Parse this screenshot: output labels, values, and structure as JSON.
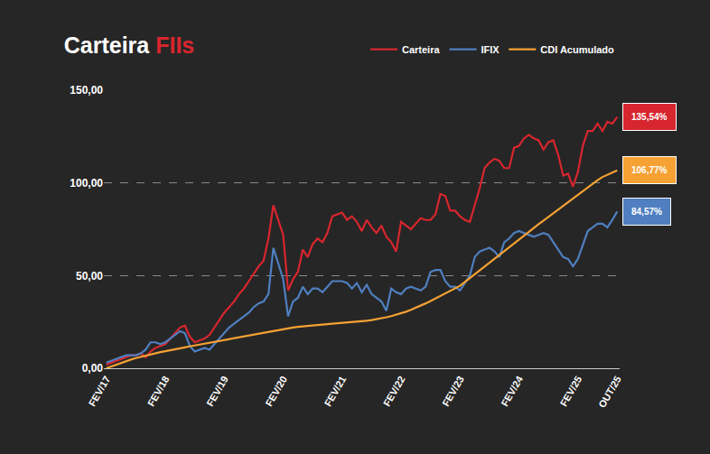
{
  "chart_data": {
    "type": "line",
    "title": "Carteira FIIs",
    "categories": [
      "FEV/17",
      null,
      null,
      null,
      null,
      null,
      null,
      null,
      null,
      null,
      null,
      null,
      "FEV/18",
      null,
      null,
      null,
      null,
      null,
      null,
      null,
      null,
      null,
      null,
      null,
      "FEV/19",
      null,
      null,
      null,
      null,
      null,
      null,
      null,
      null,
      null,
      null,
      null,
      "FEV/20",
      null,
      null,
      null,
      null,
      null,
      null,
      null,
      null,
      null,
      null,
      null,
      "FEV/21",
      null,
      null,
      null,
      null,
      null,
      null,
      null,
      null,
      null,
      null,
      null,
      "FEV/22",
      null,
      null,
      null,
      null,
      null,
      null,
      null,
      null,
      null,
      null,
      null,
      "FEV/23",
      null,
      null,
      null,
      null,
      null,
      null,
      null,
      null,
      null,
      null,
      null,
      "FEV/24",
      null,
      null,
      null,
      null,
      null,
      null,
      null,
      null,
      null,
      null,
      null,
      "FEV/25",
      null,
      null,
      null,
      null,
      null,
      null,
      null,
      "OUT/25"
    ],
    "series": [
      {
        "name": "Carteira",
        "color": "#d7262e",
        "values": [
          2,
          3,
          4,
          5,
          6,
          7,
          7,
          8,
          6,
          9,
          11,
          12,
          13,
          16,
          19,
          22,
          23,
          17,
          14,
          15,
          16,
          18,
          22,
          26,
          30,
          33,
          36,
          40,
          43,
          47,
          51,
          55,
          58,
          70,
          88,
          80,
          72,
          42,
          48,
          52,
          64,
          60,
          67,
          70,
          68,
          73,
          82,
          83,
          84,
          80,
          82,
          79,
          74,
          80,
          76,
          73,
          77,
          71,
          68,
          63,
          79,
          77,
          75,
          78,
          81,
          80,
          80,
          83,
          94,
          93,
          85,
          85,
          82,
          80,
          79,
          88,
          97,
          108,
          111,
          113,
          112,
          108,
          108,
          119,
          120,
          124,
          126,
          124,
          123,
          118,
          122,
          123,
          115,
          104,
          105,
          98,
          106,
          120,
          128,
          128,
          132,
          128,
          133,
          132,
          135.54
        ],
        "value_labels": [
          null,
          null,
          null,
          null,
          null,
          null,
          null,
          null,
          null,
          null,
          null,
          null,
          null,
          null,
          null,
          null,
          null,
          null,
          null,
          null,
          null,
          null,
          null,
          null,
          null,
          null,
          null,
          null,
          null,
          null,
          null,
          null,
          null,
          null,
          null,
          null,
          null,
          null,
          null,
          null,
          null,
          null,
          null,
          null,
          null,
          null,
          null,
          null,
          null,
          null,
          null,
          null,
          null,
          null,
          null,
          null,
          null,
          null,
          null,
          null,
          null,
          null,
          null,
          null,
          null,
          null,
          null,
          null,
          null,
          null,
          null,
          null,
          null,
          null,
          null,
          null,
          null,
          null,
          null,
          null,
          null,
          null,
          null,
          null,
          null,
          null,
          null,
          null,
          null,
          null,
          null,
          null,
          null,
          null,
          null,
          null,
          null,
          null,
          null,
          null,
          null,
          null,
          null,
          null,
          "135,54%"
        ]
      },
      {
        "name": "IFIX",
        "color": "#4f7fc0",
        "values": [
          3,
          4,
          5,
          6,
          7,
          7,
          7,
          8,
          10,
          14,
          14,
          13,
          14,
          16,
          18,
          20,
          19,
          12,
          9,
          10,
          11,
          10,
          13,
          16,
          19,
          22,
          24,
          26,
          28,
          30,
          33,
          35,
          36,
          40,
          65,
          57,
          48,
          28,
          36,
          38,
          44,
          40,
          43,
          43,
          41,
          44,
          47,
          47,
          47,
          46,
          43,
          46,
          41,
          45,
          40,
          38,
          36,
          31,
          43,
          41,
          40,
          43,
          44,
          43,
          42,
          44,
          52,
          53,
          53,
          47,
          44,
          44,
          42,
          46,
          50,
          60,
          63,
          64,
          65,
          63,
          60,
          68,
          70,
          73,
          74,
          73,
          72,
          71,
          72,
          73,
          72,
          68,
          64,
          60,
          59,
          55,
          59,
          67,
          74,
          76,
          78,
          78,
          76,
          80,
          84.57
        ],
        "value_labels": [
          null,
          null,
          null,
          null,
          null,
          null,
          null,
          null,
          null,
          null,
          null,
          null,
          null,
          null,
          null,
          null,
          null,
          null,
          null,
          null,
          null,
          null,
          null,
          null,
          null,
          null,
          null,
          null,
          null,
          null,
          null,
          null,
          null,
          null,
          null,
          null,
          null,
          null,
          null,
          null,
          null,
          null,
          null,
          null,
          null,
          null,
          null,
          null,
          null,
          null,
          null,
          null,
          null,
          null,
          null,
          null,
          null,
          null,
          null,
          null,
          null,
          null,
          null,
          null,
          null,
          null,
          null,
          null,
          null,
          null,
          null,
          null,
          null,
          null,
          null,
          null,
          null,
          null,
          null,
          null,
          null,
          null,
          null,
          null,
          null,
          null,
          null,
          null,
          null,
          null,
          null,
          null,
          null,
          null,
          null,
          null,
          null,
          null,
          null,
          null,
          null,
          null,
          null,
          null,
          "84,57%"
        ]
      },
      {
        "name": "CDI Acumulado",
        "color": "#f5a133",
        "values": [
          0,
          1.0,
          2.0,
          2.9,
          3.8,
          4.7,
          5.5,
          6.2,
          6.9,
          7.5,
          8.1,
          8.7,
          9.2,
          9.8,
          10.3,
          10.8,
          11.3,
          11.8,
          12.3,
          12.8,
          13.3,
          13.8,
          14.3,
          14.8,
          15.3,
          15.8,
          16.3,
          16.8,
          17.3,
          17.8,
          18.3,
          18.8,
          19.3,
          19.8,
          20.3,
          20.8,
          21.2,
          21.6,
          22.0,
          22.3,
          22.6,
          22.9,
          23.2,
          23.4,
          23.6,
          23.8,
          24.0,
          24.2,
          24.4,
          24.6,
          24.8,
          25.0,
          25.3,
          25.6,
          26.0,
          26.4,
          26.9,
          27.5,
          28.1,
          28.8,
          29.6,
          30.5,
          31.5,
          32.6,
          33.8,
          35.0,
          36.3,
          37.6,
          38.9,
          40.3,
          41.7,
          43.1,
          44.5,
          46.6,
          48.7,
          50.8,
          52.9,
          55.0,
          57.1,
          59.2,
          61.3,
          63.4,
          65.5,
          67.6,
          69.7,
          71.7,
          73.7,
          75.7,
          77.7,
          79.7,
          81.7,
          83.7,
          85.7,
          87.7,
          89.7,
          91.6,
          93.5,
          95.5,
          97.5,
          99.5,
          101.5,
          103.2,
          104.5,
          105.7,
          106.77
        ],
        "value_labels": [
          null,
          null,
          null,
          null,
          null,
          null,
          null,
          null,
          null,
          null,
          null,
          null,
          null,
          null,
          null,
          null,
          null,
          null,
          null,
          null,
          null,
          null,
          null,
          null,
          null,
          null,
          null,
          null,
          null,
          null,
          null,
          null,
          null,
          null,
          null,
          null,
          null,
          null,
          null,
          null,
          null,
          null,
          null,
          null,
          null,
          null,
          null,
          null,
          null,
          null,
          null,
          null,
          null,
          null,
          null,
          null,
          null,
          null,
          null,
          null,
          null,
          null,
          null,
          null,
          null,
          null,
          null,
          null,
          null,
          null,
          null,
          null,
          null,
          null,
          null,
          null,
          null,
          null,
          null,
          null,
          null,
          null,
          null,
          null,
          null,
          null,
          null,
          null,
          null,
          null,
          null,
          null,
          null,
          null,
          null,
          null,
          null,
          null,
          null,
          null,
          null,
          null,
          null,
          null,
          "106,77%"
        ]
      }
    ],
    "ylim": [
      0,
      150
    ],
    "yticks": [
      {
        "value": 0,
        "label": "0,00"
      },
      {
        "value": 50,
        "label": "50,00"
      },
      {
        "value": 100,
        "label": "100,00"
      },
      {
        "value": 150,
        "label": "150,00"
      }
    ],
    "grid": true,
    "legend": "top right",
    "data_labels": true
  }
}
